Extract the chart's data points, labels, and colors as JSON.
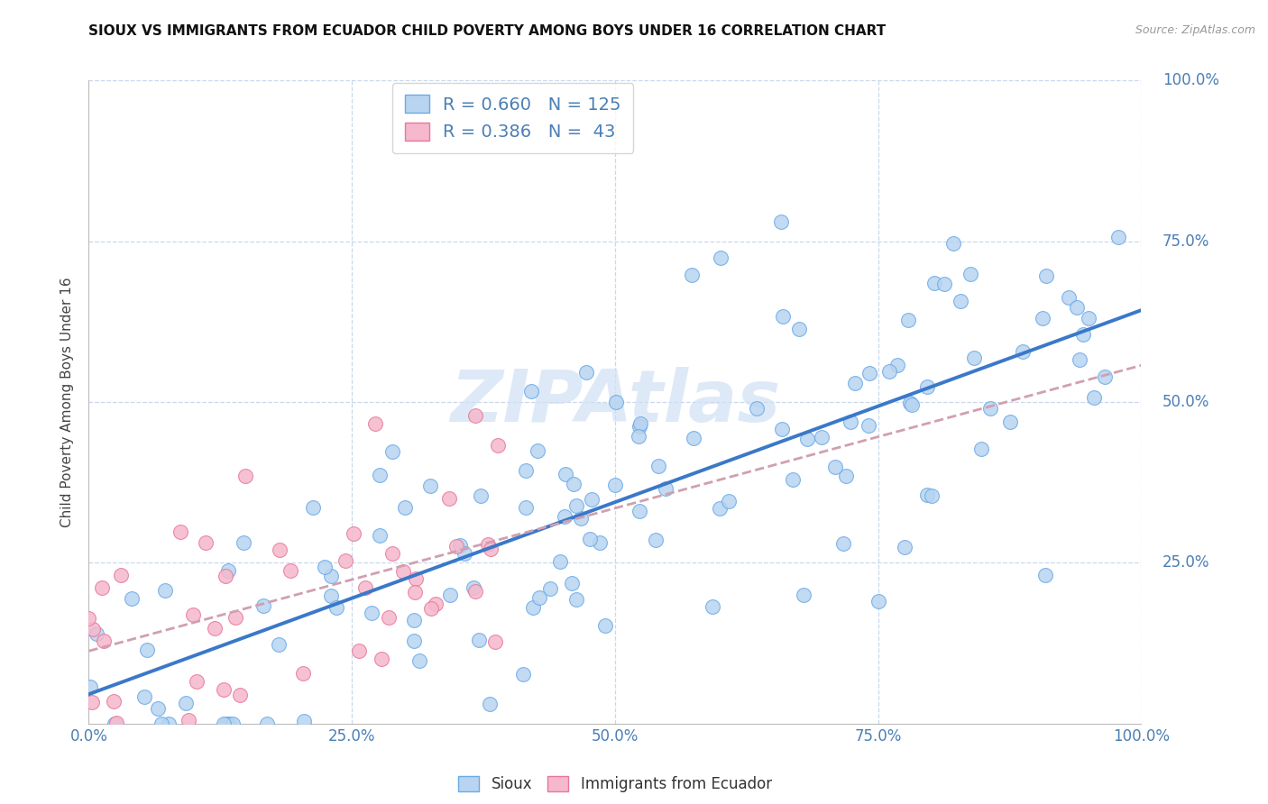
{
  "title": "SIOUX VS IMMIGRANTS FROM ECUADOR CHILD POVERTY AMONG BOYS UNDER 16 CORRELATION CHART",
  "source": "Source: ZipAtlas.com",
  "ylabel": "Child Poverty Among Boys Under 16",
  "watermark": "ZIPAtlas",
  "sioux_color": "#b8d4f0",
  "sioux_edge_color": "#6aaae8",
  "ecuador_color": "#f5b8cc",
  "ecuador_edge_color": "#e87898",
  "line_sioux_color": "#3a78c9",
  "line_ecuador_color": "#d0a0b0",
  "R_sioux": 0.66,
  "N_sioux": 125,
  "R_ecuador": 0.386,
  "N_ecuador": 43,
  "xlim": [
    0,
    1
  ],
  "ylim": [
    0,
    1
  ],
  "background_color": "#ffffff",
  "grid_color": "#c8d8ec",
  "title_color": "#111111",
  "tick_label_color": "#4a7fb5",
  "ylabel_color": "#444444",
  "source_color": "#999999",
  "legend_label_color": "#4a7fb5",
  "watermark_color": "#d0e0f5"
}
